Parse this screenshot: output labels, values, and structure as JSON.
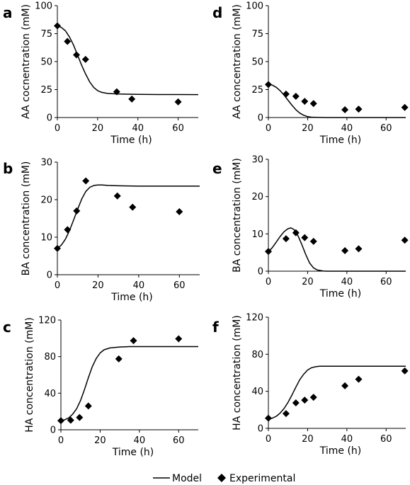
{
  "legend": {
    "model_label": "Model",
    "experimental_label": "Experimental"
  },
  "chart_data": [
    {
      "panel": "a",
      "type": "scatter",
      "xlabel": "Time (h)",
      "ylabel": "AA cocnentration (mM)",
      "xlim": [
        0,
        70
      ],
      "ylim": [
        0,
        100
      ],
      "xticks": [
        0,
        20,
        40,
        60
      ],
      "yticks": [
        0,
        25,
        50,
        75,
        100
      ],
      "series": [
        {
          "name": "Model",
          "kind": "line",
          "x": [
            0,
            2,
            4,
            6,
            8,
            10,
            12,
            14,
            16,
            18,
            20,
            22,
            25,
            30,
            40,
            50,
            60,
            70
          ],
          "y": [
            82,
            80.5,
            77.5,
            72,
            65,
            56,
            47,
            39,
            32,
            27,
            24,
            22.5,
            21.5,
            21,
            20.7,
            20.6,
            20.6,
            20.5
          ]
        },
        {
          "name": "Experimental",
          "kind": "points",
          "x": [
            0,
            5,
            9.5,
            14,
            29.5,
            37,
            60
          ],
          "y": [
            82,
            68,
            56,
            52,
            23,
            16.5,
            14
          ]
        }
      ]
    },
    {
      "panel": "b",
      "type": "scatter",
      "xlabel": "Time (h)",
      "ylabel": "BA concentration (mM)",
      "xlim": [
        0,
        70
      ],
      "ylim": [
        0,
        30
      ],
      "xticks": [
        0,
        20,
        40,
        60
      ],
      "yticks": [
        0,
        10,
        20,
        30
      ],
      "series": [
        {
          "name": "Model",
          "kind": "line",
          "x": [
            0,
            2,
            4,
            6,
            8,
            10,
            12,
            14,
            16,
            18,
            20,
            22,
            25,
            30,
            40,
            50,
            60,
            70
          ],
          "y": [
            7,
            7.9,
            9.5,
            11.8,
            14.6,
            17.5,
            20.2,
            22.2,
            23.3,
            23.8,
            23.9,
            23.9,
            23.8,
            23.7,
            23.6,
            23.6,
            23.6,
            23.6
          ]
        },
        {
          "name": "Experimental",
          "kind": "points",
          "x": [
            0,
            5,
            9.5,
            14,
            29.5,
            37,
            60
          ],
          "y": [
            7,
            12,
            17,
            25,
            21,
            18,
            16.8
          ]
        }
      ]
    },
    {
      "panel": "c",
      "type": "scatter",
      "xlabel": "Time (h)",
      "ylabel": "HA concentration (mM)",
      "xlim": [
        0,
        70
      ],
      "ylim": [
        0,
        120
      ],
      "xticks": [
        0,
        20,
        40,
        60
      ],
      "yticks": [
        0,
        40,
        80,
        120
      ],
      "series": [
        {
          "name": "Model",
          "kind": "line",
          "x": [
            0,
            2,
            4,
            6,
            8,
            10,
            12,
            14,
            16,
            18,
            20,
            22,
            25,
            30,
            35,
            40,
            50,
            60,
            70
          ],
          "y": [
            10,
            11,
            13,
            17,
            23,
            32,
            44,
            57,
            69,
            78,
            84,
            87.5,
            89.5,
            90.5,
            91,
            91,
            91,
            91,
            91
          ]
        },
        {
          "name": "Experimental",
          "kind": "points",
          "x": [
            0,
            5,
            9.5,
            14,
            29.5,
            37,
            60
          ],
          "y": [
            10,
            10.5,
            13.5,
            26,
            77.5,
            97.5,
            99.5
          ]
        }
      ]
    },
    {
      "panel": "d",
      "type": "scatter",
      "xlabel": "Time (h)",
      "ylabel": "AA concentration (mM)",
      "xlim": [
        0,
        70
      ],
      "ylim": [
        0,
        100
      ],
      "xticks": [
        0,
        20,
        40,
        60
      ],
      "yticks": [
        0,
        25,
        50,
        75,
        100
      ],
      "series": [
        {
          "name": "Model",
          "kind": "line",
          "x": [
            0,
            2,
            4,
            6,
            8,
            10,
            12,
            14,
            16,
            18,
            20,
            22,
            25,
            30,
            40,
            50,
            60,
            70
          ],
          "y": [
            30,
            29,
            27,
            24,
            20,
            15.5,
            11,
            7,
            4,
            2,
            0.8,
            0.3,
            0.1,
            0,
            0,
            0,
            0,
            0
          ]
        },
        {
          "name": "Experimental",
          "kind": "points",
          "x": [
            0,
            9,
            14,
            18.5,
            23,
            39,
            46,
            69.5
          ],
          "y": [
            29.5,
            21,
            19,
            14.5,
            12.5,
            7,
            7.5,
            9
          ]
        }
      ]
    },
    {
      "panel": "e",
      "type": "scatter",
      "xlabel": "Time (h)",
      "ylabel": "BA concentration (mM)",
      "xlim": [
        0,
        70
      ],
      "ylim": [
        0,
        30
      ],
      "xticks": [
        0,
        20,
        40,
        60
      ],
      "yticks": [
        0,
        10,
        20,
        30
      ],
      "series": [
        {
          "name": "Model",
          "kind": "line",
          "x": [
            0,
            2,
            4,
            6,
            8,
            10,
            11.5,
            13,
            15,
            17,
            19,
            21,
            23,
            25,
            28,
            30,
            40,
            50,
            60,
            70
          ],
          "y": [
            5.2,
            6.3,
            7.8,
            9.3,
            10.6,
            11.4,
            11.6,
            11.2,
            9.6,
            7.2,
            4.5,
            2.2,
            0.9,
            0.3,
            0.05,
            0,
            0,
            0,
            0,
            0
          ]
        },
        {
          "name": "Experimental",
          "kind": "points",
          "x": [
            0,
            9,
            14,
            18.5,
            23,
            39,
            46,
            69.5
          ],
          "y": [
            5.3,
            8.7,
            10.3,
            9,
            8,
            5.5,
            6,
            8.3
          ]
        }
      ]
    },
    {
      "panel": "f",
      "type": "scatter",
      "xlabel": "Time (h)",
      "ylabel": "HA concentration (mM)",
      "xlim": [
        0,
        70
      ],
      "ylim": [
        0,
        120
      ],
      "xticks": [
        0,
        20,
        40,
        60
      ],
      "yticks": [
        0,
        40,
        80,
        120
      ],
      "series": [
        {
          "name": "Model",
          "kind": "line",
          "x": [
            0,
            2,
            4,
            6,
            8,
            10,
            12,
            14,
            16,
            18,
            20,
            22,
            24,
            26,
            30,
            40,
            50,
            60,
            70
          ],
          "y": [
            10,
            11,
            13,
            16.5,
            21.5,
            28,
            36,
            44.5,
            52.5,
            58.5,
            63,
            65.5,
            66.5,
            67,
            67,
            67,
            67,
            67,
            67
          ]
        },
        {
          "name": "Experimental",
          "kind": "points",
          "x": [
            0,
            9,
            14,
            18.5,
            23,
            39,
            46,
            69.5
          ],
          "y": [
            11,
            16,
            27.5,
            30.5,
            33.5,
            46,
            53,
            62
          ]
        }
      ]
    }
  ]
}
